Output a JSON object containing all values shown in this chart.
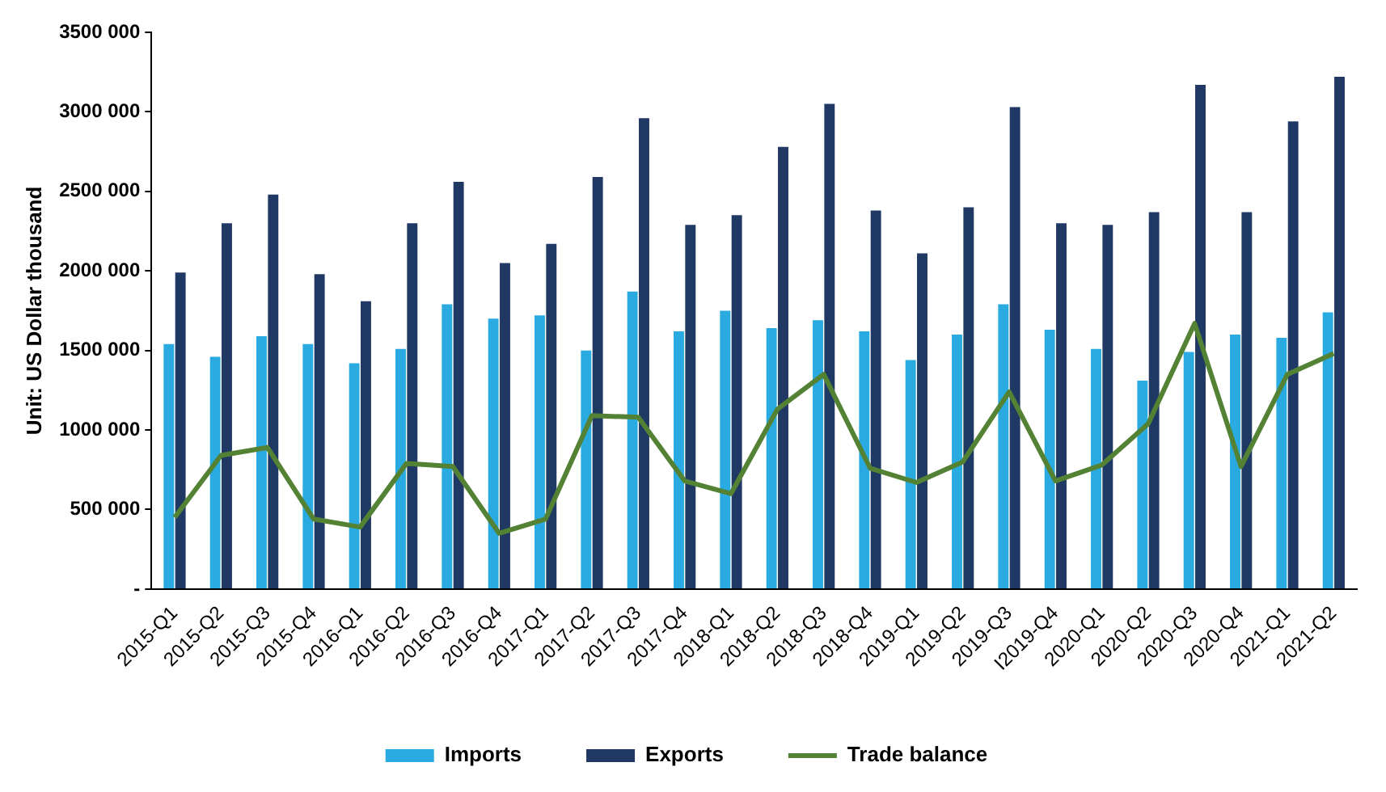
{
  "chart_data": {
    "type": "bar",
    "ylabel": "Unit: US Dollar thousand",
    "categories": [
      "2015-Q1",
      "2015-Q2",
      "2015-Q3",
      "2015-Q4",
      "2016-Q1",
      "2016-Q2",
      "2016-Q3",
      "2016-Q4",
      "2017-Q1",
      "2017-Q2",
      "2017-Q3",
      "2017-Q4",
      "2018-Q1",
      "2018-Q2",
      "2018-Q3",
      "2018-Q4",
      "2019-Q1",
      "2019-Q2",
      "2019-Q3",
      "I2019-Q4",
      "2020-Q1",
      "2020-Q2",
      "2020-Q3",
      "2020-Q4",
      "2021-Q1",
      "2021-Q2"
    ],
    "series": [
      {
        "name": "Imports",
        "color": "#29abe2",
        "values": [
          1540000,
          1460000,
          1590000,
          1540000,
          1420000,
          1510000,
          1790000,
          1700000,
          1720000,
          1500000,
          1870000,
          1620000,
          1750000,
          1640000,
          1690000,
          1620000,
          1440000,
          1600000,
          1790000,
          1630000,
          1510000,
          1310000,
          1490000,
          1600000,
          1580000,
          1740000
        ]
      },
      {
        "name": "Exports",
        "color": "#1f3864",
        "values": [
          1990000,
          2300000,
          2480000,
          1980000,
          1810000,
          2300000,
          2560000,
          2050000,
          2170000,
          2590000,
          2960000,
          2290000,
          2350000,
          2780000,
          3050000,
          2380000,
          2110000,
          2400000,
          3030000,
          2300000,
          2290000,
          2370000,
          3170000,
          2370000,
          2940000,
          3220000
        ]
      },
      {
        "name": "Trade balance",
        "type": "line",
        "color": "#548235",
        "values": [
          450000,
          840000,
          890000,
          440000,
          390000,
          790000,
          770000,
          350000,
          440000,
          1090000,
          1080000,
          680000,
          600000,
          1130000,
          1350000,
          760000,
          670000,
          800000,
          1240000,
          680000,
          780000,
          1040000,
          1670000,
          770000,
          1350000,
          1480000
        ]
      }
    ],
    "ylim": [
      0,
      3500000
    ],
    "yticks": [
      {
        "value": 0,
        "label": "-"
      },
      {
        "value": 500000,
        "label": "500 000"
      },
      {
        "value": 1000000,
        "label": "1000 000"
      },
      {
        "value": 1500000,
        "label": "1500 000"
      },
      {
        "value": 2000000,
        "label": "2000 000"
      },
      {
        "value": 2500000,
        "label": "2500 000"
      },
      {
        "value": 3000000,
        "label": "3000 000"
      },
      {
        "value": 3500000,
        "label": "3500 000"
      }
    ],
    "grid": false,
    "legend": "bottom",
    "marker": "none",
    "line_style": "solid"
  }
}
